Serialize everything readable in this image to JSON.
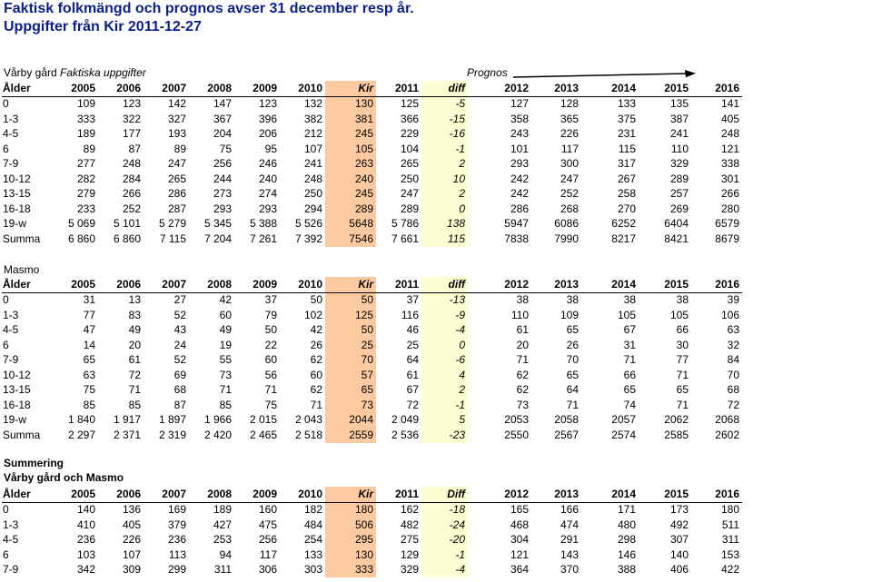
{
  "title_line1": "Faktisk folkmängd och prognos avser 31 december resp år.",
  "title_line2": "Uppgifter från Kir 2011-12-27",
  "colors": {
    "title": "#0b1f8c",
    "kir_fill": "#fbcaa0",
    "diff_fill": "#fefed3"
  },
  "section1": {
    "label_place": "Vårby gård",
    "label_actual": "Faktiska uppgifter",
    "label_prognos": "Prognos",
    "headers": [
      "Ålder",
      "2005",
      "2006",
      "2007",
      "2008",
      "2009",
      "2010",
      "Kir",
      "2011",
      "diff",
      "2012",
      "2013",
      "2014",
      "2015",
      "2016"
    ],
    "rows": [
      [
        "0",
        "109",
        "123",
        "142",
        "147",
        "123",
        "132",
        "130",
        "125",
        "-5",
        "127",
        "128",
        "133",
        "135",
        "141"
      ],
      [
        "1-3",
        "333",
        "322",
        "327",
        "367",
        "396",
        "382",
        "381",
        "366",
        "-15",
        "358",
        "365",
        "375",
        "387",
        "405"
      ],
      [
        "4-5",
        "189",
        "177",
        "193",
        "204",
        "206",
        "212",
        "245",
        "229",
        "-16",
        "243",
        "226",
        "231",
        "241",
        "248"
      ],
      [
        "6",
        "89",
        "87",
        "89",
        "75",
        "95",
        "107",
        "105",
        "104",
        "-1",
        "101",
        "117",
        "115",
        "110",
        "121"
      ],
      [
        "7-9",
        "277",
        "248",
        "247",
        "256",
        "246",
        "241",
        "263",
        "265",
        "2",
        "293",
        "300",
        "317",
        "329",
        "338"
      ],
      [
        "10-12",
        "282",
        "284",
        "265",
        "244",
        "240",
        "248",
        "240",
        "250",
        "10",
        "242",
        "247",
        "267",
        "289",
        "301"
      ],
      [
        "13-15",
        "279",
        "266",
        "286",
        "273",
        "274",
        "250",
        "245",
        "247",
        "2",
        "242",
        "252",
        "258",
        "257",
        "266"
      ],
      [
        "16-18",
        "233",
        "252",
        "287",
        "293",
        "293",
        "294",
        "289",
        "289",
        "0",
        "286",
        "268",
        "270",
        "269",
        "280"
      ],
      [
        "19-w",
        "5 069",
        "5 101",
        "5 279",
        "5 345",
        "5 388",
        "5 526",
        "5648",
        "5 786",
        "138",
        "5947",
        "6086",
        "6252",
        "6404",
        "6579"
      ],
      [
        "Summa",
        "6 860",
        "6 860",
        "7 115",
        "7 204",
        "7 261",
        "7 392",
        "7546",
        "7 661",
        "115",
        "7838",
        "7990",
        "8217",
        "8421",
        "8679"
      ]
    ]
  },
  "section2": {
    "label": "Masmo",
    "headers": [
      "Ålder",
      "2005",
      "2006",
      "2007",
      "2008",
      "2009",
      "2010",
      "Kir",
      "2011",
      "diff",
      "2012",
      "2013",
      "2014",
      "2015",
      "2016"
    ],
    "rows": [
      [
        "0",
        "31",
        "13",
        "27",
        "42",
        "37",
        "50",
        "50",
        "37",
        "-13",
        "38",
        "38",
        "38",
        "38",
        "39"
      ],
      [
        "1-3",
        "77",
        "83",
        "52",
        "60",
        "79",
        "102",
        "125",
        "116",
        "-9",
        "110",
        "109",
        "105",
        "105",
        "106"
      ],
      [
        "4-5",
        "47",
        "49",
        "43",
        "49",
        "50",
        "42",
        "50",
        "46",
        "-4",
        "61",
        "65",
        "67",
        "66",
        "63"
      ],
      [
        "6",
        "14",
        "20",
        "24",
        "19",
        "22",
        "26",
        "25",
        "25",
        "0",
        "20",
        "26",
        "31",
        "30",
        "32"
      ],
      [
        "7-9",
        "65",
        "61",
        "52",
        "55",
        "60",
        "62",
        "70",
        "64",
        "-6",
        "71",
        "70",
        "71",
        "77",
        "84"
      ],
      [
        "10-12",
        "63",
        "72",
        "69",
        "73",
        "56",
        "60",
        "57",
        "61",
        "4",
        "62",
        "65",
        "66",
        "71",
        "70"
      ],
      [
        "13-15",
        "75",
        "71",
        "68",
        "71",
        "71",
        "62",
        "65",
        "67",
        "2",
        "62",
        "64",
        "65",
        "65",
        "68"
      ],
      [
        "16-18",
        "85",
        "85",
        "87",
        "85",
        "75",
        "71",
        "73",
        "72",
        "-1",
        "73",
        "71",
        "74",
        "71",
        "72"
      ],
      [
        "19-w",
        "1 840",
        "1 917",
        "1 897",
        "1 966",
        "2 015",
        "2 043",
        "2044",
        "2 049",
        "5",
        "2053",
        "2058",
        "2057",
        "2062",
        "2068"
      ],
      [
        "Summa",
        "2 297",
        "2 371",
        "2 319",
        "2 420",
        "2 465",
        "2 518",
        "2559",
        "2 536",
        "-23",
        "2550",
        "2567",
        "2574",
        "2585",
        "2602"
      ]
    ]
  },
  "section3": {
    "label_line1": "Summering",
    "label_line2": "Vårby gård och Masmo",
    "headers": [
      "Ålder",
      "2005",
      "2006",
      "2007",
      "2008",
      "2009",
      "2010",
      "Kir",
      "2011",
      "Diff",
      "2012",
      "2013",
      "2014",
      "2015",
      "2016"
    ],
    "rows": [
      [
        "0",
        "140",
        "136",
        "169",
        "189",
        "160",
        "182",
        "180",
        "162",
        "-18",
        "165",
        "166",
        "171",
        "173",
        "180"
      ],
      [
        "1-3",
        "410",
        "405",
        "379",
        "427",
        "475",
        "484",
        "506",
        "482",
        "-24",
        "468",
        "474",
        "480",
        "492",
        "511"
      ],
      [
        "4-5",
        "236",
        "226",
        "236",
        "253",
        "256",
        "254",
        "295",
        "275",
        "-20",
        "304",
        "291",
        "298",
        "307",
        "311"
      ],
      [
        "6",
        "103",
        "107",
        "113",
        "94",
        "117",
        "133",
        "130",
        "129",
        "-1",
        "121",
        "143",
        "146",
        "140",
        "153"
      ],
      [
        "7-9",
        "342",
        "309",
        "299",
        "311",
        "306",
        "303",
        "333",
        "329",
        "-4",
        "364",
        "370",
        "388",
        "406",
        "422"
      ]
    ]
  }
}
